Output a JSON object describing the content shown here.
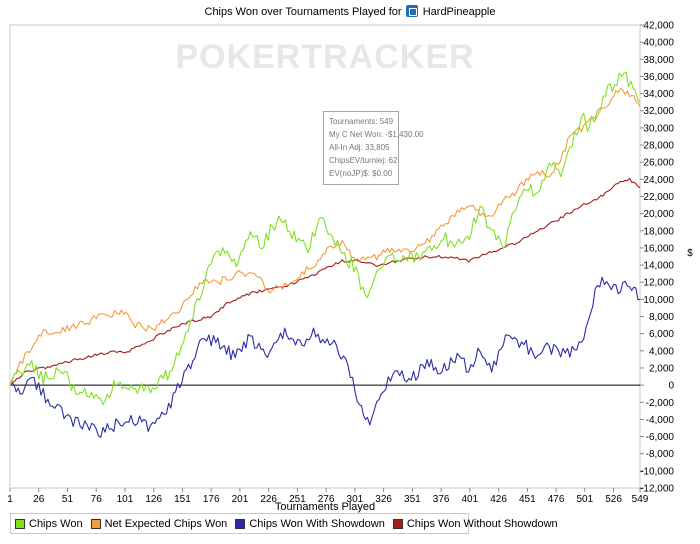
{
  "title": "Chips Won over Tournaments Played for",
  "player_name": "HardPineapple",
  "watermark": "POKERTRACKER",
  "tooltip": {
    "line1": "Tournaments: 549",
    "line2": "My C Net Won: -$1,430.00",
    "line3": "All-In Adj: 33,805",
    "line4": "ChipsEV/turniej: 62",
    "line5": "EV(noJP)$: $0.00"
  },
  "chart_data": {
    "type": "line",
    "title": "Chips Won over Tournaments Played for HardPineapple",
    "xlabel": "Tournaments Played",
    "ylabel": "$",
    "xlim": [
      1,
      549
    ],
    "ylim": [
      -12000,
      42000
    ],
    "x_ticks": [
      "1",
      "26",
      "51",
      "76",
      "101",
      "126",
      "151",
      "176",
      "201",
      "226",
      "251",
      "276",
      "301",
      "326",
      "351",
      "376",
      "401",
      "426",
      "451",
      "476",
      "501",
      "526",
      "549"
    ],
    "y_ticks": [
      "-12,000",
      "-10,000",
      "-8,000",
      "-6,000",
      "-4,000",
      "-2,000",
      "0",
      "2,000",
      "4,000",
      "6,000",
      "8,000",
      "10,000",
      "12,000",
      "14,000",
      "16,000",
      "18,000",
      "20,000",
      "22,000",
      "24,000",
      "26,000",
      "28,000",
      "30,000",
      "32,000",
      "34,000",
      "36,000",
      "38,000",
      "40,000",
      "42,000"
    ],
    "grid": false,
    "legend_position": "bottom-left",
    "series": [
      {
        "name": "Chips Won",
        "color": "#7fe01f",
        "points": [
          [
            1,
            0
          ],
          [
            10,
            1500
          ],
          [
            20,
            2500
          ],
          [
            30,
            800
          ],
          [
            45,
            2000
          ],
          [
            60,
            -1000
          ],
          [
            72,
            -800
          ],
          [
            80,
            -2200
          ],
          [
            95,
            500
          ],
          [
            110,
            -200
          ],
          [
            125,
            -500
          ],
          [
            140,
            1500
          ],
          [
            150,
            4000
          ],
          [
            160,
            8000
          ],
          [
            170,
            12000
          ],
          [
            180,
            15000
          ],
          [
            190,
            16000
          ],
          [
            200,
            14000
          ],
          [
            210,
            18000
          ],
          [
            220,
            16500
          ],
          [
            235,
            19500
          ],
          [
            250,
            17000
          ],
          [
            260,
            16000
          ],
          [
            270,
            19000
          ],
          [
            280,
            18000
          ],
          [
            290,
            15000
          ],
          [
            300,
            14000
          ],
          [
            310,
            10000
          ],
          [
            320,
            13000
          ],
          [
            330,
            15000
          ],
          [
            345,
            14500
          ],
          [
            360,
            15500
          ],
          [
            380,
            17000
          ],
          [
            395,
            16000
          ],
          [
            410,
            20500
          ],
          [
            420,
            18000
          ],
          [
            430,
            16000
          ],
          [
            440,
            21000
          ],
          [
            450,
            23000
          ],
          [
            460,
            22500
          ],
          [
            470,
            25500
          ],
          [
            480,
            25000
          ],
          [
            490,
            28500
          ],
          [
            500,
            31000
          ],
          [
            505,
            30000
          ],
          [
            515,
            33000
          ],
          [
            525,
            35000
          ],
          [
            535,
            36200
          ],
          [
            545,
            34500
          ],
          [
            549,
            33000
          ]
        ]
      },
      {
        "name": "Net Expected Chips Won",
        "color": "#f59a3c",
        "points": [
          [
            1,
            0
          ],
          [
            10,
            2500
          ],
          [
            20,
            4500
          ],
          [
            30,
            6000
          ],
          [
            45,
            6500
          ],
          [
            60,
            7000
          ],
          [
            80,
            8000
          ],
          [
            100,
            8500
          ],
          [
            110,
            7000
          ],
          [
            125,
            6500
          ],
          [
            135,
            7500
          ],
          [
            150,
            9000
          ],
          [
            160,
            11000
          ],
          [
            170,
            12000
          ],
          [
            180,
            12000
          ],
          [
            190,
            12500
          ],
          [
            200,
            13000
          ],
          [
            215,
            13000
          ],
          [
            225,
            11000
          ],
          [
            240,
            11500
          ],
          [
            255,
            13000
          ],
          [
            265,
            14000
          ],
          [
            275,
            15500
          ],
          [
            290,
            16500
          ],
          [
            300,
            15000
          ],
          [
            310,
            14500
          ],
          [
            320,
            15000
          ],
          [
            335,
            16000
          ],
          [
            345,
            15500
          ],
          [
            360,
            16500
          ],
          [
            370,
            17500
          ],
          [
            380,
            19000
          ],
          [
            390,
            20000
          ],
          [
            400,
            21000
          ],
          [
            410,
            20000
          ],
          [
            420,
            20000
          ],
          [
            430,
            21500
          ],
          [
            440,
            22500
          ],
          [
            450,
            24000
          ],
          [
            460,
            25000
          ],
          [
            470,
            24000
          ],
          [
            480,
            26500
          ],
          [
            490,
            29500
          ],
          [
            500,
            30000
          ],
          [
            510,
            31500
          ],
          [
            520,
            32500
          ],
          [
            530,
            34500
          ],
          [
            540,
            34000
          ],
          [
            549,
            32500
          ]
        ]
      },
      {
        "name": "Chips Won With Showdown",
        "color": "#2b2ba6",
        "points": [
          [
            1,
            0
          ],
          [
            10,
            -500
          ],
          [
            20,
            500
          ],
          [
            30,
            -1000
          ],
          [
            40,
            -2500
          ],
          [
            50,
            -3500
          ],
          [
            60,
            -4500
          ],
          [
            70,
            -5000
          ],
          [
            80,
            -5500
          ],
          [
            95,
            -4500
          ],
          [
            110,
            -4000
          ],
          [
            125,
            -5000
          ],
          [
            135,
            -3500
          ],
          [
            145,
            -1000
          ],
          [
            160,
            3000
          ],
          [
            170,
            5500
          ],
          [
            180,
            5000
          ],
          [
            195,
            3500
          ],
          [
            210,
            5500
          ],
          [
            225,
            3500
          ],
          [
            240,
            6000
          ],
          [
            255,
            4500
          ],
          [
            265,
            6000
          ],
          [
            275,
            5000
          ],
          [
            285,
            4500
          ],
          [
            295,
            2500
          ],
          [
            305,
            -2500
          ],
          [
            312,
            -4500
          ],
          [
            322,
            -1500
          ],
          [
            330,
            500
          ],
          [
            340,
            1500
          ],
          [
            350,
            500
          ],
          [
            360,
            2500
          ],
          [
            375,
            2000
          ],
          [
            390,
            3000
          ],
          [
            400,
            2000
          ],
          [
            410,
            4000
          ],
          [
            420,
            1500
          ],
          [
            430,
            5000
          ],
          [
            440,
            5500
          ],
          [
            450,
            4500
          ],
          [
            460,
            3000
          ],
          [
            470,
            4500
          ],
          [
            480,
            3500
          ],
          [
            490,
            4000
          ],
          [
            500,
            5000
          ],
          [
            510,
            11000
          ],
          [
            520,
            12500
          ],
          [
            530,
            11000
          ],
          [
            540,
            12000
          ],
          [
            549,
            10000
          ]
        ]
      },
      {
        "name": "Chips Won Without Showdown",
        "color": "#a61c1c",
        "points": [
          [
            1,
            0
          ],
          [
            15,
            1500
          ],
          [
            30,
            2000
          ],
          [
            45,
            2500
          ],
          [
            60,
            3000
          ],
          [
            75,
            3500
          ],
          [
            90,
            3800
          ],
          [
            105,
            4000
          ],
          [
            120,
            5000
          ],
          [
            140,
            6500
          ],
          [
            160,
            7500
          ],
          [
            175,
            8000
          ],
          [
            190,
            9500
          ],
          [
            205,
            10500
          ],
          [
            220,
            11000
          ],
          [
            240,
            11500
          ],
          [
            260,
            12500
          ],
          [
            275,
            13500
          ],
          [
            290,
            14500
          ],
          [
            305,
            14500
          ],
          [
            320,
            14000
          ],
          [
            340,
            14500
          ],
          [
            360,
            15000
          ],
          [
            380,
            15000
          ],
          [
            400,
            14500
          ],
          [
            420,
            15500
          ],
          [
            440,
            16500
          ],
          [
            460,
            18000
          ],
          [
            480,
            19500
          ],
          [
            500,
            21000
          ],
          [
            515,
            22000
          ],
          [
            530,
            23500
          ],
          [
            540,
            24000
          ],
          [
            549,
            23000
          ]
        ]
      }
    ]
  }
}
